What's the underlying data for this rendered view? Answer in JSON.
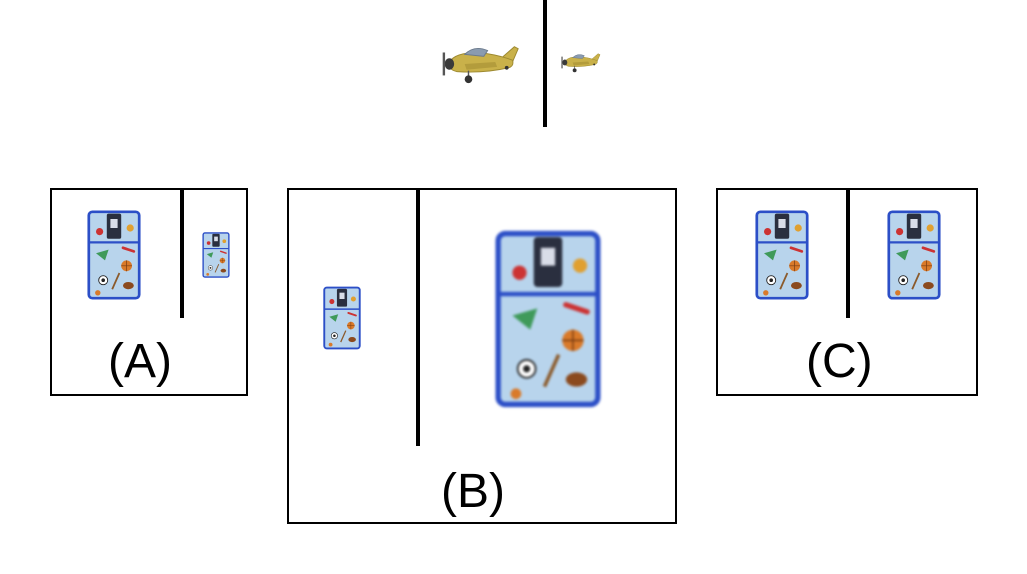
{
  "reference": {
    "object": "toy-plane-icon",
    "left_relative_size": "large",
    "right_relative_size": "small"
  },
  "options": [
    {
      "id": "A",
      "label": "(A)",
      "left_size": "large",
      "right_size": "small"
    },
    {
      "id": "B",
      "label": "(B)",
      "left_size": "small",
      "right_size": "large"
    },
    {
      "id": "C",
      "label": "(C)",
      "left_size": "same",
      "right_size": "same"
    }
  ],
  "colors": {
    "plane_body": "#c9b14a",
    "plane_window": "#8a9bb0",
    "bag_fill": "#b8d4ec",
    "bag_trim": "#2c4fc7",
    "border": "#000000"
  }
}
